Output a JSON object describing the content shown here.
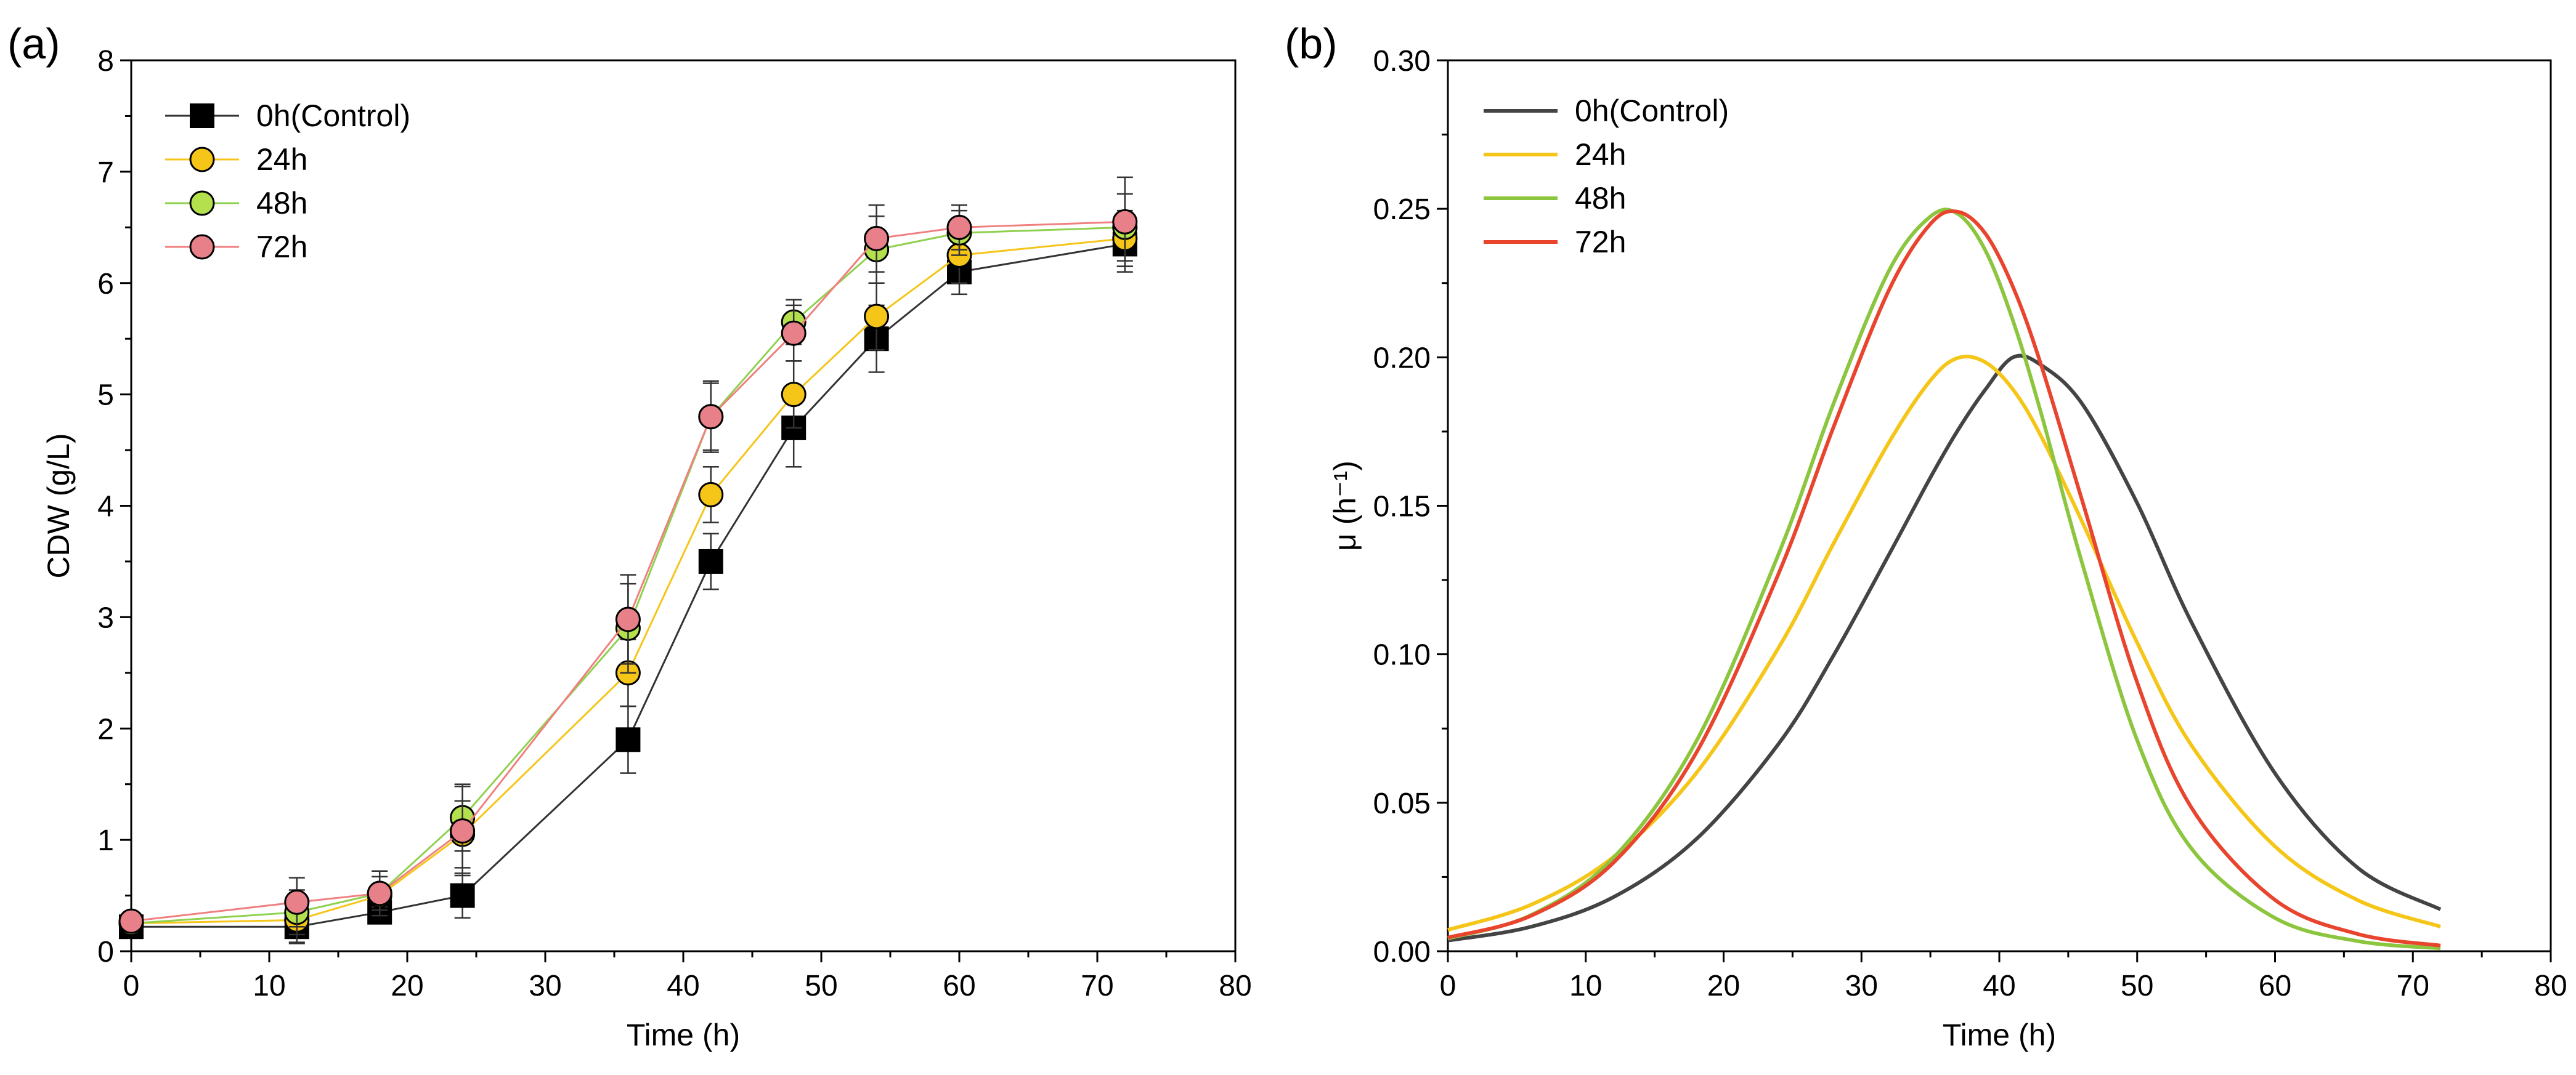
{
  "chart_data": [
    {
      "panel_label": "(a)",
      "type": "line",
      "xlabel": "Time (h)",
      "ylabel": "CDW (g/L)",
      "xlim": [
        0,
        80
      ],
      "ylim": [
        0,
        8
      ],
      "xticks": [
        "0",
        "10",
        "20",
        "30",
        "40",
        "50",
        "60",
        "70",
        "80"
      ],
      "yticks": [
        "0",
        "1",
        "2",
        "3",
        "4",
        "5",
        "6",
        "7",
        "8"
      ],
      "grid": false,
      "legend_position": "top-left",
      "x": [
        0,
        12,
        18,
        24,
        36,
        42,
        48,
        54,
        60,
        72
      ],
      "series": [
        {
          "name": "0h(Control)",
          "marker": "square",
          "line_color": "#333333",
          "marker_fill": "#000000",
          "values": [
            0.22,
            0.22,
            0.35,
            0.5,
            1.9,
            3.5,
            4.7,
            5.5,
            6.1,
            6.35
          ],
          "errors": [
            0.05,
            0.15,
            0.08,
            0.2,
            0.3,
            0.25,
            0.35,
            0.3,
            0.2,
            0.25
          ]
        },
        {
          "name": "24h",
          "marker": "circle",
          "line_color": "#f5c518",
          "marker_fill": "#f5c518",
          "values": [
            0.25,
            0.28,
            0.5,
            1.05,
            2.5,
            4.1,
            5.0,
            5.7,
            6.25,
            6.4
          ],
          "errors": [
            0.05,
            0.2,
            0.1,
            0.3,
            0.3,
            0.25,
            0.3,
            0.3,
            0.25,
            0.25
          ]
        },
        {
          "name": "48h",
          "marker": "circle",
          "line_color": "#8fd14f",
          "marker_fill": "#b4e04e",
          "values": [
            0.25,
            0.35,
            0.52,
            1.2,
            2.9,
            4.8,
            5.65,
            6.3,
            6.45,
            6.5
          ],
          "errors": [
            0.05,
            0.2,
            0.15,
            0.3,
            0.4,
            0.3,
            0.2,
            0.3,
            0.2,
            0.3
          ]
        },
        {
          "name": "72h",
          "marker": "circle",
          "line_color": "#f08080",
          "marker_fill": "#e8808a",
          "values": [
            0.27,
            0.44,
            0.52,
            1.08,
            2.98,
            4.8,
            5.55,
            6.4,
            6.5,
            6.55
          ],
          "errors": [
            0.05,
            0.22,
            0.2,
            0.4,
            0.4,
            0.32,
            0.25,
            0.3,
            0.2,
            0.4
          ]
        }
      ]
    },
    {
      "panel_label": "(b)",
      "type": "line",
      "xlabel": "Time (h)",
      "ylabel": "μ (h⁻¹)",
      "xlim": [
        0,
        80
      ],
      "ylim": [
        0,
        0.3
      ],
      "xticks": [
        "0",
        "10",
        "20",
        "30",
        "40",
        "50",
        "60",
        "70",
        "80"
      ],
      "yticks": [
        "0.00",
        "0.05",
        "0.10",
        "0.15",
        "0.20",
        "0.25",
        "0.30"
      ],
      "grid": false,
      "legend_position": "top-left",
      "x": [
        0,
        6,
        12,
        18,
        24,
        28,
        32,
        35,
        37,
        39,
        41,
        43,
        46,
        50,
        54,
        60,
        66,
        72
      ],
      "series": [
        {
          "name": "0h(Control)",
          "line_color": "#444444",
          "values": [
            0.0036,
            0.0082,
            0.0182,
            0.0377,
            0.0699,
            0.0998,
            0.1336,
            0.1595,
            0.1755,
            0.1892,
            0.2,
            0.1975,
            0.1844,
            0.1509,
            0.1102,
            0.0599,
            0.0281,
            0.0141
          ]
        },
        {
          "name": "24h",
          "line_color": "#f5c518",
          "values": [
            0.0072,
            0.0156,
            0.0317,
            0.0599,
            0.1023,
            0.1375,
            0.1714,
            0.1922,
            0.1998,
            0.1983,
            0.1891,
            0.1737,
            0.1447,
            0.1039,
            0.0689,
            0.0353,
            0.0172,
            0.0083
          ]
        },
        {
          "name": "48h",
          "line_color": "#8cc63f",
          "values": [
            0.0043,
            0.0121,
            0.0314,
            0.0706,
            0.1339,
            0.1847,
            0.2292,
            0.2474,
            0.2483,
            0.2359,
            0.2122,
            0.1817,
            0.1308,
            0.071,
            0.0342,
            0.0112,
            0.0034,
            0.001
          ]
        },
        {
          "name": "72h",
          "line_color": "#e8442e",
          "values": [
            0.0046,
            0.0119,
            0.0298,
            0.0667,
            0.1273,
            0.1768,
            0.2227,
            0.2449,
            0.249,
            0.2416,
            0.2236,
            0.1979,
            0.1519,
            0.0905,
            0.0479,
            0.0173,
            0.0058,
            0.0019
          ]
        }
      ]
    }
  ]
}
